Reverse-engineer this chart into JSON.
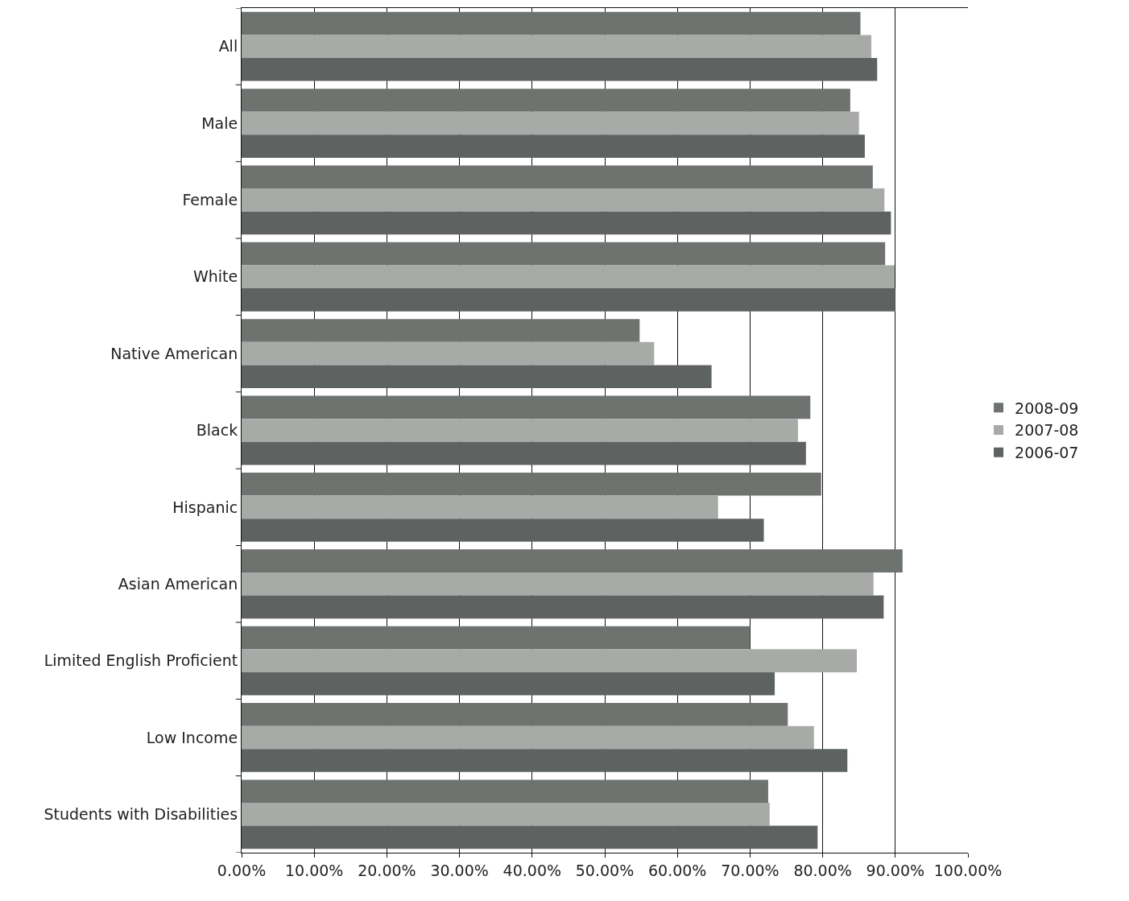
{
  "chart_data": {
    "type": "bar",
    "orientation": "horizontal",
    "categories": [
      "All",
      "Male",
      "Female",
      "White",
      "Native American",
      "Black",
      "Hispanic",
      "Asian American",
      "Limited English Proficient",
      "Low Income",
      "Students with Disabilities"
    ],
    "series": [
      {
        "name": "2008-09",
        "color": "#6e7370",
        "values": [
          85.2,
          83.8,
          86.9,
          88.6,
          54.8,
          78.3,
          79.8,
          91.0,
          70.0,
          75.2,
          72.5
        ]
      },
      {
        "name": "2007-08",
        "color": "#a8aaa8",
        "values": [
          86.7,
          85.0,
          88.5,
          89.9,
          56.8,
          76.6,
          65.6,
          87.0,
          84.7,
          78.8,
          72.7
        ]
      },
      {
        "name": "2006-07",
        "color": "#5e6361",
        "values": [
          87.5,
          85.8,
          89.4,
          90.0,
          64.7,
          77.7,
          71.9,
          88.4,
          73.4,
          83.4,
          79.3
        ]
      }
    ],
    "xlim": [
      0,
      100
    ],
    "xticks": [
      {
        "value": 0,
        "label": "0.00%"
      },
      {
        "value": 10,
        "label": "10.00%"
      },
      {
        "value": 20,
        "label": "20.00%"
      },
      {
        "value": 30,
        "label": "30.00%"
      },
      {
        "value": 40,
        "label": "40.00%"
      },
      {
        "value": 50,
        "label": "50.00%"
      },
      {
        "value": 60,
        "label": "60.00%"
      },
      {
        "value": 70,
        "label": "70.00%"
      },
      {
        "value": 80,
        "label": "80.00%"
      },
      {
        "value": 90,
        "label": "90.00%"
      },
      {
        "value": 100,
        "label": "100.00%"
      }
    ],
    "grid": "x",
    "legend": "right"
  }
}
